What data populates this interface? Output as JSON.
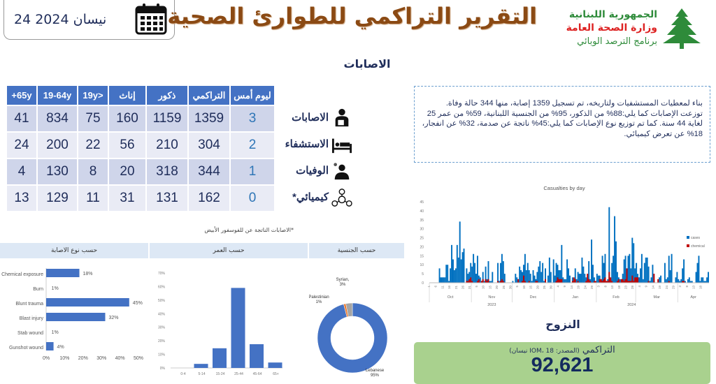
{
  "header": {
    "date": "24 نيسان 2024",
    "title": "التقرير التراكمي للطوارئ الصحية",
    "ministry_line1": "الجمهورية اللبنانية",
    "ministry_line2": "وزارة الصحة العامة",
    "ministry_line3": "برنامج الترصد الوبائي",
    "calendar_icon": "calendar-icon",
    "logo": "cedar-logo"
  },
  "injuries": {
    "title": "الاصابات",
    "columns": [
      "ليوم أمس",
      "التراكمي",
      "ذكور",
      "إناث",
      "<19y",
      "19-64y",
      "65y+"
    ],
    "rows": [
      {
        "label": "الاصابات",
        "icon": "injured-person-icon",
        "values": [
          "3",
          "1359",
          "1159",
          "160",
          "75",
          "834",
          "41"
        ]
      },
      {
        "label": "الاستشفاء",
        "icon": "hospital-bed-icon",
        "values": [
          "2",
          "304",
          "210",
          "56",
          "22",
          "200",
          "24"
        ]
      },
      {
        "label": "الوفيات",
        "icon": "deceased-person-icon",
        "values": [
          "1",
          "344",
          "318",
          "20",
          "8",
          "130",
          "4"
        ]
      },
      {
        "label": "كيميائي*",
        "icon": "chemical-icon",
        "values": [
          "0",
          "162",
          "131",
          "31",
          "11",
          "129",
          "13"
        ]
      }
    ],
    "note": "*الاصابات الناتجة عن للفوسفور الأبيض"
  },
  "tabs": {
    "by_type": "حسب نوع الاصابة",
    "by_age": "حسب العمر",
    "by_nationality": "حسب الجنسية"
  },
  "summary": "بناء لمعطيات المستشفيات ولتاريخه، تم تسجيل 1359 إصابة، منها 344 حالة وفاة. توزعت الإصابات كما يلي:88% من الذكور، 95% من الجنسية اللبنانية، 59% من عمر 25 لغاية 44 سنة. كما تم توزيع نوع الإصابات كما يلي:45% ناتجة عن صدمة، 32% عن انفجار، 18% عن تعرض كيميائي.",
  "displacement": {
    "title": "النزوح",
    "label": "التراكمي",
    "source": "(المصدر: IOM، 18 نيسان)",
    "value": "92,621",
    "bg": "#a9d18e"
  },
  "colors": {
    "bar": "#4472c4",
    "cases": "#0070c0",
    "chemical": "#c00000",
    "title": "#8b4a14"
  },
  "chart_data": [
    {
      "type": "bar",
      "orientation": "horizontal",
      "categories": [
        "Chemical exposure",
        "Burn",
        "Blunt trauma",
        "Blast injury",
        "Stab wound",
        "Gunshot wound"
      ],
      "values": [
        18,
        1,
        45,
        32,
        1,
        4
      ],
      "labels": [
        "18%",
        "1%",
        "45%",
        "32%",
        "1%",
        "4%"
      ],
      "xticks": [
        "0%",
        "10%",
        "20%",
        "30%",
        "40%",
        "50%"
      ],
      "xlim": [
        0,
        50
      ]
    },
    {
      "type": "bar",
      "categories": [
        "0-4",
        "5-14",
        "15-24",
        "25-44",
        "45-64",
        "65+"
      ],
      "values": [
        0,
        3,
        14.5,
        59,
        17.5,
        4
      ],
      "yticks": [
        "0%",
        "10%",
        "20%",
        "30%",
        "40%",
        "50%",
        "60%",
        "70%"
      ],
      "ylim": [
        0,
        70
      ]
    },
    {
      "type": "pie",
      "donut": true,
      "slices": [
        {
          "name": "Lebanese",
          "value": 95,
          "label": "Lebanese 95%",
          "color": "#4472c4"
        },
        {
          "name": "Palestinian",
          "value": 1,
          "label": "Palestinian 1%",
          "color": "#ed7d31"
        },
        {
          "name": "Syrian",
          "value": 3,
          "label": "Syrian, 3%",
          "color": "#a5a5a5"
        }
      ]
    },
    {
      "type": "bar",
      "stacked": false,
      "title": "Casualties by day",
      "ylim": [
        0,
        45
      ],
      "yticks": [
        "0",
        "5",
        "10",
        "15",
        "20",
        "25",
        "30",
        "35",
        "40",
        "45"
      ],
      "months": [
        {
          "name": "Oct",
          "year": "2023",
          "days": 31,
          "ticks": [
            "1",
            "6",
            "11",
            "16",
            "21",
            "26",
            "31"
          ]
        },
        {
          "name": "Nov",
          "year": "2023",
          "days": 30,
          "ticks": [
            "5",
            "10",
            "15",
            "20",
            "25",
            "30"
          ]
        },
        {
          "name": "Dec",
          "year": "2023",
          "days": 31,
          "ticks": [
            "5",
            "10",
            "15",
            "20",
            "25",
            "30"
          ]
        },
        {
          "name": "Jan",
          "year": "2024",
          "days": 31,
          "ticks": [
            "4",
            "9",
            "14",
            "19",
            "24",
            "29"
          ]
        },
        {
          "name": "Feb",
          "year": "2024",
          "days": 29,
          "ticks": [
            "3",
            "8",
            "13",
            "18",
            "23",
            "28"
          ]
        },
        {
          "name": "Mar",
          "year": "2024",
          "days": 31,
          "ticks": [
            "4",
            "9",
            "14",
            "19",
            "24",
            "29"
          ]
        },
        {
          "name": "Apr",
          "year": "2024",
          "days": 23,
          "ticks": [
            "3",
            "8",
            "13",
            "18"
          ]
        }
      ],
      "years": [
        "2023",
        "2024"
      ],
      "series": [
        {
          "name": "cases",
          "color": "#0070c0",
          "values": [
            0,
            0,
            0,
            0,
            0,
            0,
            0,
            8,
            3,
            3,
            3,
            3,
            10,
            10,
            1,
            8,
            21,
            13,
            7,
            8,
            21,
            14,
            34,
            13,
            17,
            19,
            0,
            8,
            5,
            6,
            11,
            9,
            16,
            11,
            5,
            15,
            4,
            3,
            1,
            6,
            1,
            9,
            2,
            12,
            1,
            1,
            6,
            0,
            0,
            0,
            11,
            1,
            11,
            16,
            12,
            5,
            0,
            0,
            0,
            0,
            0,
            1,
            0,
            5,
            3,
            2,
            9,
            7,
            6,
            10,
            16,
            7,
            11,
            7,
            5,
            1,
            7,
            4,
            2,
            6,
            9,
            12,
            6,
            11,
            1,
            8,
            0,
            4,
            14,
            6,
            0,
            13,
            4,
            11,
            10,
            7,
            7,
            21,
            3,
            2,
            2,
            13,
            8,
            4,
            0,
            3,
            1,
            8,
            2,
            6,
            5,
            5,
            14,
            9,
            5,
            3,
            2,
            12,
            2,
            24,
            10,
            3,
            0,
            5,
            4,
            4,
            0,
            15,
            11,
            16,
            0,
            2,
            42,
            2,
            11,
            15,
            37,
            23,
            6,
            3,
            2,
            2,
            5,
            13,
            15,
            2,
            15,
            16,
            8,
            25,
            22,
            8,
            11,
            5,
            3,
            8,
            16,
            2,
            11,
            14,
            14,
            9,
            1,
            3,
            10,
            1,
            0,
            0,
            0,
            3,
            4,
            0,
            0,
            11,
            2,
            3,
            15,
            7,
            16,
            0,
            0,
            3,
            6,
            2,
            1,
            2,
            8,
            13,
            1,
            0,
            2,
            3,
            1,
            1,
            0,
            0,
            6,
            11,
            15,
            1,
            3,
            3,
            1,
            1,
            3,
            6
          ]
        },
        {
          "name": "chemical",
          "color": "#c00000",
          "values": [
            0,
            0,
            0,
            0,
            0,
            0,
            0,
            0,
            0,
            0,
            0,
            0,
            0,
            0,
            0,
            0,
            0,
            0,
            0,
            0,
            0,
            0,
            0,
            0,
            0,
            0,
            0,
            1,
            1,
            2,
            3,
            1,
            0,
            0,
            0,
            1,
            2,
            0,
            1,
            2,
            0,
            2,
            1,
            2,
            0,
            0,
            0,
            0,
            0,
            0,
            1,
            0,
            1,
            2,
            1,
            0,
            0,
            0,
            0,
            0,
            0,
            0,
            0,
            0,
            0,
            2,
            0,
            0,
            1,
            4,
            1,
            0,
            0,
            1,
            0,
            0,
            0,
            0,
            1,
            1,
            0,
            0,
            0,
            0,
            0,
            2,
            0,
            0,
            0,
            0,
            0,
            0,
            0,
            1,
            3,
            2,
            2,
            2,
            0,
            0,
            0,
            0,
            0,
            0,
            0,
            1,
            3,
            2,
            0,
            1,
            0,
            0,
            0,
            0,
            0,
            1,
            5,
            2,
            1,
            0,
            0,
            1,
            1,
            0,
            0,
            2,
            2,
            1,
            2,
            3,
            1,
            1,
            6,
            3,
            1,
            0,
            0,
            0,
            1,
            2,
            0,
            2,
            2,
            1,
            2,
            8,
            1,
            1,
            1,
            4,
            1,
            3,
            3,
            3,
            0,
            0,
            0,
            0,
            0,
            0,
            0,
            1,
            0,
            0,
            0,
            5,
            0,
            0,
            2,
            0,
            0,
            0,
            0,
            0,
            0,
            0,
            1,
            0,
            0,
            0,
            0,
            0,
            0,
            0,
            0,
            0,
            1,
            1,
            0,
            0,
            0,
            0,
            0
          ]
        }
      ]
    }
  ]
}
